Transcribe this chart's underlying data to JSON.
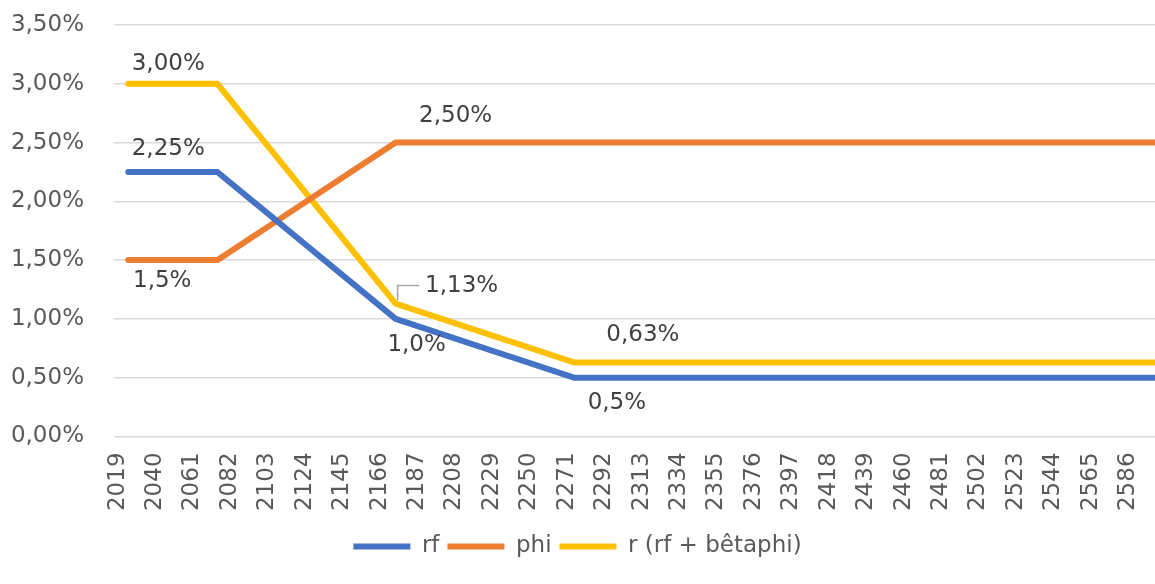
{
  "chart_data": {
    "type": "line",
    "x": [
      2025,
      2075,
      2175,
      2275,
      2601
    ],
    "series": [
      {
        "name": "rf",
        "color": "#4472c4",
        "values": [
          2.25,
          2.25,
          1.0,
          0.5,
          0.5
        ]
      },
      {
        "name": "phi",
        "color": "#ed7d31",
        "values": [
          1.5,
          1.5,
          2.5,
          2.5,
          2.5
        ]
      },
      {
        "name": "r (rf + bêtaphi)",
        "color": "#ffc000",
        "values": [
          3.0,
          3.0,
          1.13,
          0.63,
          0.63
        ]
      }
    ],
    "xlim": [
      2017,
      2601
    ],
    "xticks": [
      2019,
      2040,
      2061,
      2082,
      2103,
      2124,
      2145,
      2166,
      2187,
      2208,
      2229,
      2250,
      2271,
      2292,
      2313,
      2334,
      2355,
      2376,
      2397,
      2418,
      2439,
      2460,
      2481,
      2502,
      2523,
      2544,
      2565,
      2586
    ],
    "ylim": [
      0,
      3.5
    ],
    "yticks": [
      {
        "value": 0,
        "label": "0,00%"
      },
      {
        "value": 0.5,
        "label": "0,50%"
      },
      {
        "value": 1,
        "label": "1,00%"
      },
      {
        "value": 1.5,
        "label": "1,50%"
      },
      {
        "value": 2,
        "label": "2,00%"
      },
      {
        "value": 2.5,
        "label": "2,50%"
      },
      {
        "value": 3,
        "label": "3,00%"
      },
      {
        "value": 3.5,
        "label": "3,50%"
      }
    ],
    "grid": "y",
    "legend": "bottom",
    "marker": "none",
    "line_style": "solid",
    "annotations": [
      {
        "text": "3,00%",
        "x": 2025,
        "y": 3.0
      },
      {
        "text": "2,25%",
        "x": 2025,
        "y": 2.25
      },
      {
        "text": "1,5%",
        "x": 2025,
        "y": 1.5
      },
      {
        "text": "2,50%",
        "x": 2175,
        "y": 2.5
      },
      {
        "text": "1,13%",
        "x": 2175,
        "y": 1.13
      },
      {
        "text": "1,0%",
        "x": 2175,
        "y": 1.0
      },
      {
        "text": "0,63%",
        "x": 2275,
        "y": 0.63
      },
      {
        "text": "0,5%",
        "x": 2275,
        "y": 0.5
      }
    ]
  }
}
